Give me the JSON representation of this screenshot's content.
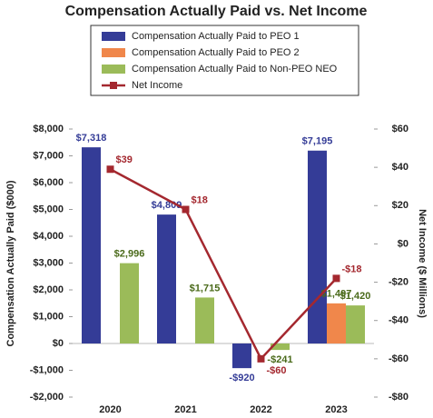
{
  "chart_data": {
    "type": "bar",
    "title": "Compensation Actually Paid vs. Net Income",
    "categories": [
      "2020",
      "2021",
      "2022",
      "2023"
    ],
    "series": [
      {
        "name": "Compensation Actually Paid to PEO 1",
        "color": "#343c97",
        "values": [
          7318,
          4809,
          -920,
          7195
        ],
        "value_labels": [
          "$7,318",
          "$4,809",
          "-$920",
          "$7,195"
        ]
      },
      {
        "name": "Compensation Actually Paid to PEO 2",
        "color": "#f0874b",
        "values": [
          null,
          null,
          null,
          1497
        ],
        "value_labels": [
          null,
          null,
          null,
          "$1,497"
        ]
      },
      {
        "name": "Compensation Actually Paid to Non-PEO NEO",
        "color": "#9bbb59",
        "values": [
          2996,
          1715,
          -241,
          1420
        ],
        "value_labels": [
          "$2,996",
          "$1,715",
          "-$241",
          "$1,420"
        ]
      },
      {
        "name": "Net Income",
        "color": "#a4282f",
        "type": "line",
        "axis": "y2",
        "values": [
          39,
          18,
          -60,
          -18
        ],
        "value_labels": [
          "$39",
          "$18",
          "-$60",
          "-$18"
        ]
      }
    ],
    "ylabel": "Compensation Actually Paid ($000)",
    "y2label": "Net Income ($ Millions)",
    "ylim": [
      -2000,
      8000
    ],
    "yticks": [
      {
        "value": -2000,
        "label": "-$2,000"
      },
      {
        "value": -1000,
        "label": "-$1,000"
      },
      {
        "value": 0,
        "label": "$0"
      },
      {
        "value": 1000,
        "label": "$1,000"
      },
      {
        "value": 2000,
        "label": "$2,000"
      },
      {
        "value": 3000,
        "label": "$3,000"
      },
      {
        "value": 4000,
        "label": "$4,000"
      },
      {
        "value": 5000,
        "label": "$5,000"
      },
      {
        "value": 6000,
        "label": "$6,000"
      },
      {
        "value": 7000,
        "label": "$7,000"
      },
      {
        "value": 8000,
        "label": "$8,000"
      }
    ],
    "y2lim": [
      -80,
      60
    ],
    "y2ticks": [
      {
        "value": -80,
        "label": "-$80"
      },
      {
        "value": -60,
        "label": "-$60"
      },
      {
        "value": -40,
        "label": "-$40"
      },
      {
        "value": -20,
        "label": "-$20"
      },
      {
        "value": 0,
        "label": "$0"
      },
      {
        "value": 20,
        "label": "$20"
      },
      {
        "value": 40,
        "label": "$40"
      },
      {
        "value": 60,
        "label": "$60"
      }
    ],
    "legend": "top",
    "grid": false
  }
}
